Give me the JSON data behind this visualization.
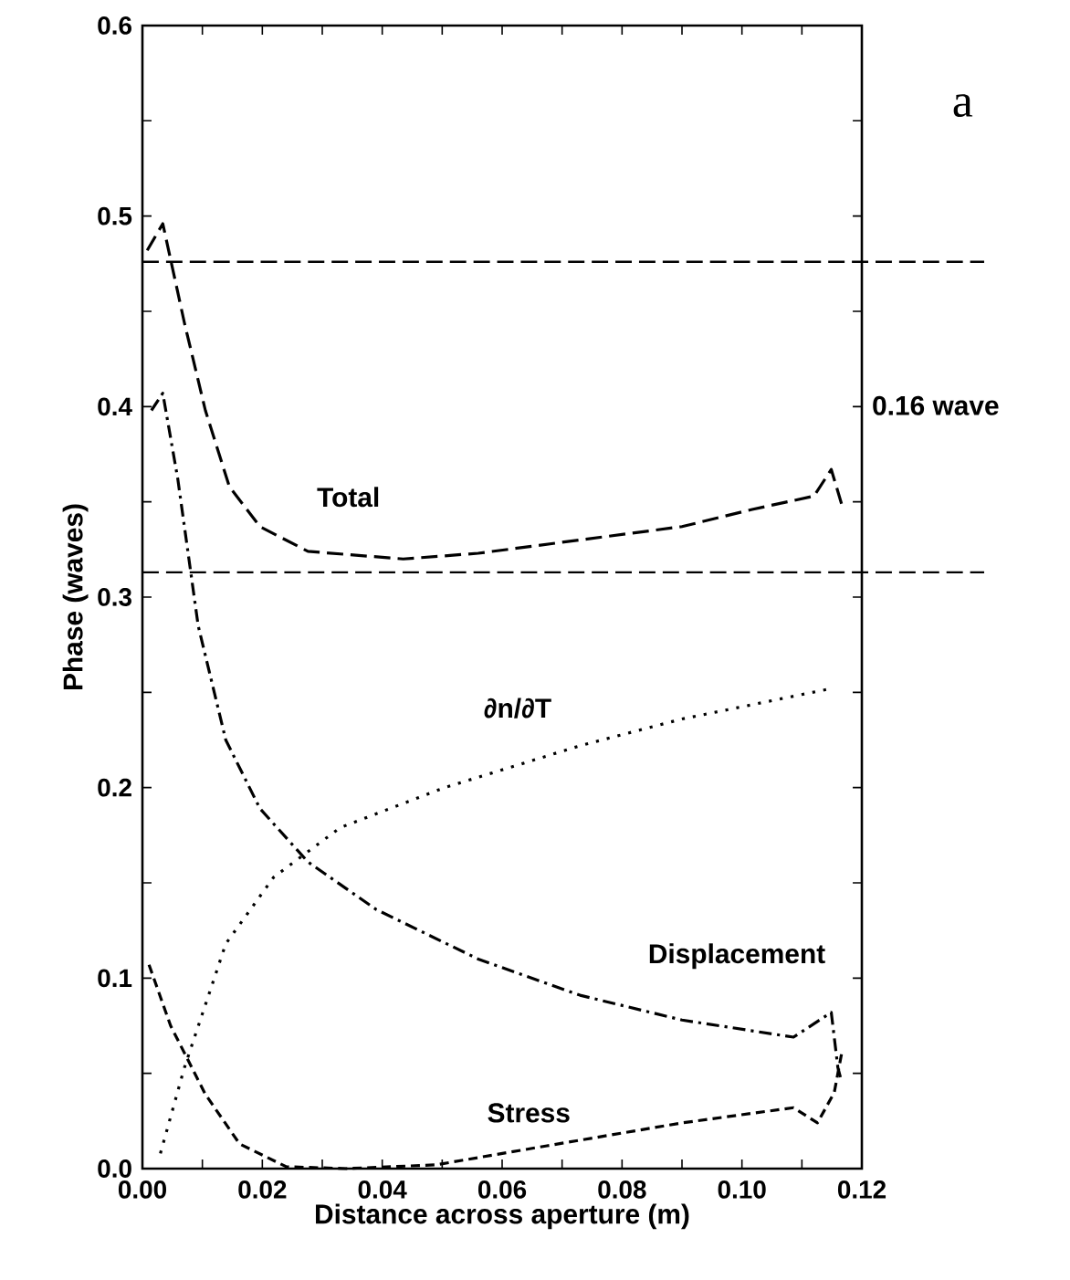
{
  "chart_data": {
    "type": "line",
    "xlabel": "Distance across aperture (m)",
    "ylabel": "Phase (waves)",
    "xlim": [
      0,
      0.12
    ],
    "ylim": [
      0,
      0.6
    ],
    "xticks": [
      {
        "value": 0,
        "label": "0.00"
      },
      {
        "value": 0.01,
        "label": null
      },
      {
        "value": 0.02,
        "label": "0.02"
      },
      {
        "value": 0.03,
        "label": null
      },
      {
        "value": 0.04,
        "label": "0.04"
      },
      {
        "value": 0.05,
        "label": null
      },
      {
        "value": 0.06,
        "label": "0.06"
      },
      {
        "value": 0.07,
        "label": null
      },
      {
        "value": 0.08,
        "label": "0.08"
      },
      {
        "value": 0.09,
        "label": null
      },
      {
        "value": 0.1,
        "label": "0.10"
      },
      {
        "value": 0.11,
        "label": null
      },
      {
        "value": 0.12,
        "label": "0.12"
      }
    ],
    "yticks": [
      {
        "value": 0,
        "label": "0.0"
      },
      {
        "value": 0.05,
        "label": null
      },
      {
        "value": 0.1,
        "label": "0.1"
      },
      {
        "value": 0.15,
        "label": null
      },
      {
        "value": 0.2,
        "label": "0.2"
      },
      {
        "value": 0.25,
        "label": null
      },
      {
        "value": 0.3,
        "label": "0.3"
      },
      {
        "value": 0.35,
        "label": null
      },
      {
        "value": 0.4,
        "label": "0.4"
      },
      {
        "value": 0.45,
        "label": null
      },
      {
        "value": 0.5,
        "label": "0.5"
      },
      {
        "value": 0.55,
        "label": null
      },
      {
        "value": 0.6,
        "label": "0.6"
      }
    ],
    "grid": false,
    "marker": "none",
    "series": [
      {
        "name": "Total",
        "color": "#000000",
        "line_style": "dashed",
        "x": [
          0.0008,
          0.0034,
          0.007,
          0.0105,
          0.0145,
          0.0196,
          0.0276,
          0.0435,
          0.056,
          0.073,
          0.09,
          0.1017,
          0.112,
          0.1149,
          0.1167
        ],
        "values": [
          0.482,
          0.496,
          0.444,
          0.398,
          0.358,
          0.337,
          0.324,
          0.32,
          0.323,
          0.33,
          0.337,
          0.346,
          0.353,
          0.367,
          0.348
        ]
      },
      {
        "name": "Displacement",
        "color": "#000000",
        "line_style": "dashdot",
        "x": [
          0.0015,
          0.0034,
          0.0059,
          0.0093,
          0.0139,
          0.0196,
          0.0276,
          0.039,
          0.056,
          0.073,
          0.09,
          0.1086,
          0.1149,
          0.116,
          0.1166
        ],
        "values": [
          0.398,
          0.407,
          0.362,
          0.285,
          0.225,
          0.189,
          0.161,
          0.136,
          0.11,
          0.091,
          0.078,
          0.069,
          0.082,
          0.053,
          0.046
        ]
      },
      {
        "name": "∂n/∂T",
        "color": "#000000",
        "line_style": "dotted",
        "x": [
          0.003,
          0.007,
          0.0139,
          0.0219,
          0.033,
          0.0504,
          0.0638,
          0.073,
          0.09,
          0.1149
        ],
        "values": [
          0.008,
          0.053,
          0.118,
          0.153,
          0.179,
          0.2,
          0.213,
          0.222,
          0.236,
          0.252
        ]
      },
      {
        "name": "Stress",
        "color": "#000000",
        "line_style": "dashed",
        "x": [
          0.0011,
          0.0047,
          0.0105,
          0.0162,
          0.024,
          0.034,
          0.049,
          0.0675,
          0.09,
          0.1086,
          0.1126,
          0.1154,
          0.1166
        ],
        "values": [
          0.107,
          0.075,
          0.039,
          0.013,
          0.001,
          0.0,
          0.002,
          0.012,
          0.024,
          0.032,
          0.024,
          0.04,
          0.06
        ]
      }
    ],
    "ref_lines": [
      {
        "axis": "y",
        "value": 0.476,
        "color": "#000000",
        "line_style": "dashed"
      },
      {
        "axis": "y",
        "value": 0.313,
        "color": "#000000",
        "line_style": "dashed"
      }
    ],
    "annotations": [
      "a",
      "0.16 wave"
    ]
  }
}
